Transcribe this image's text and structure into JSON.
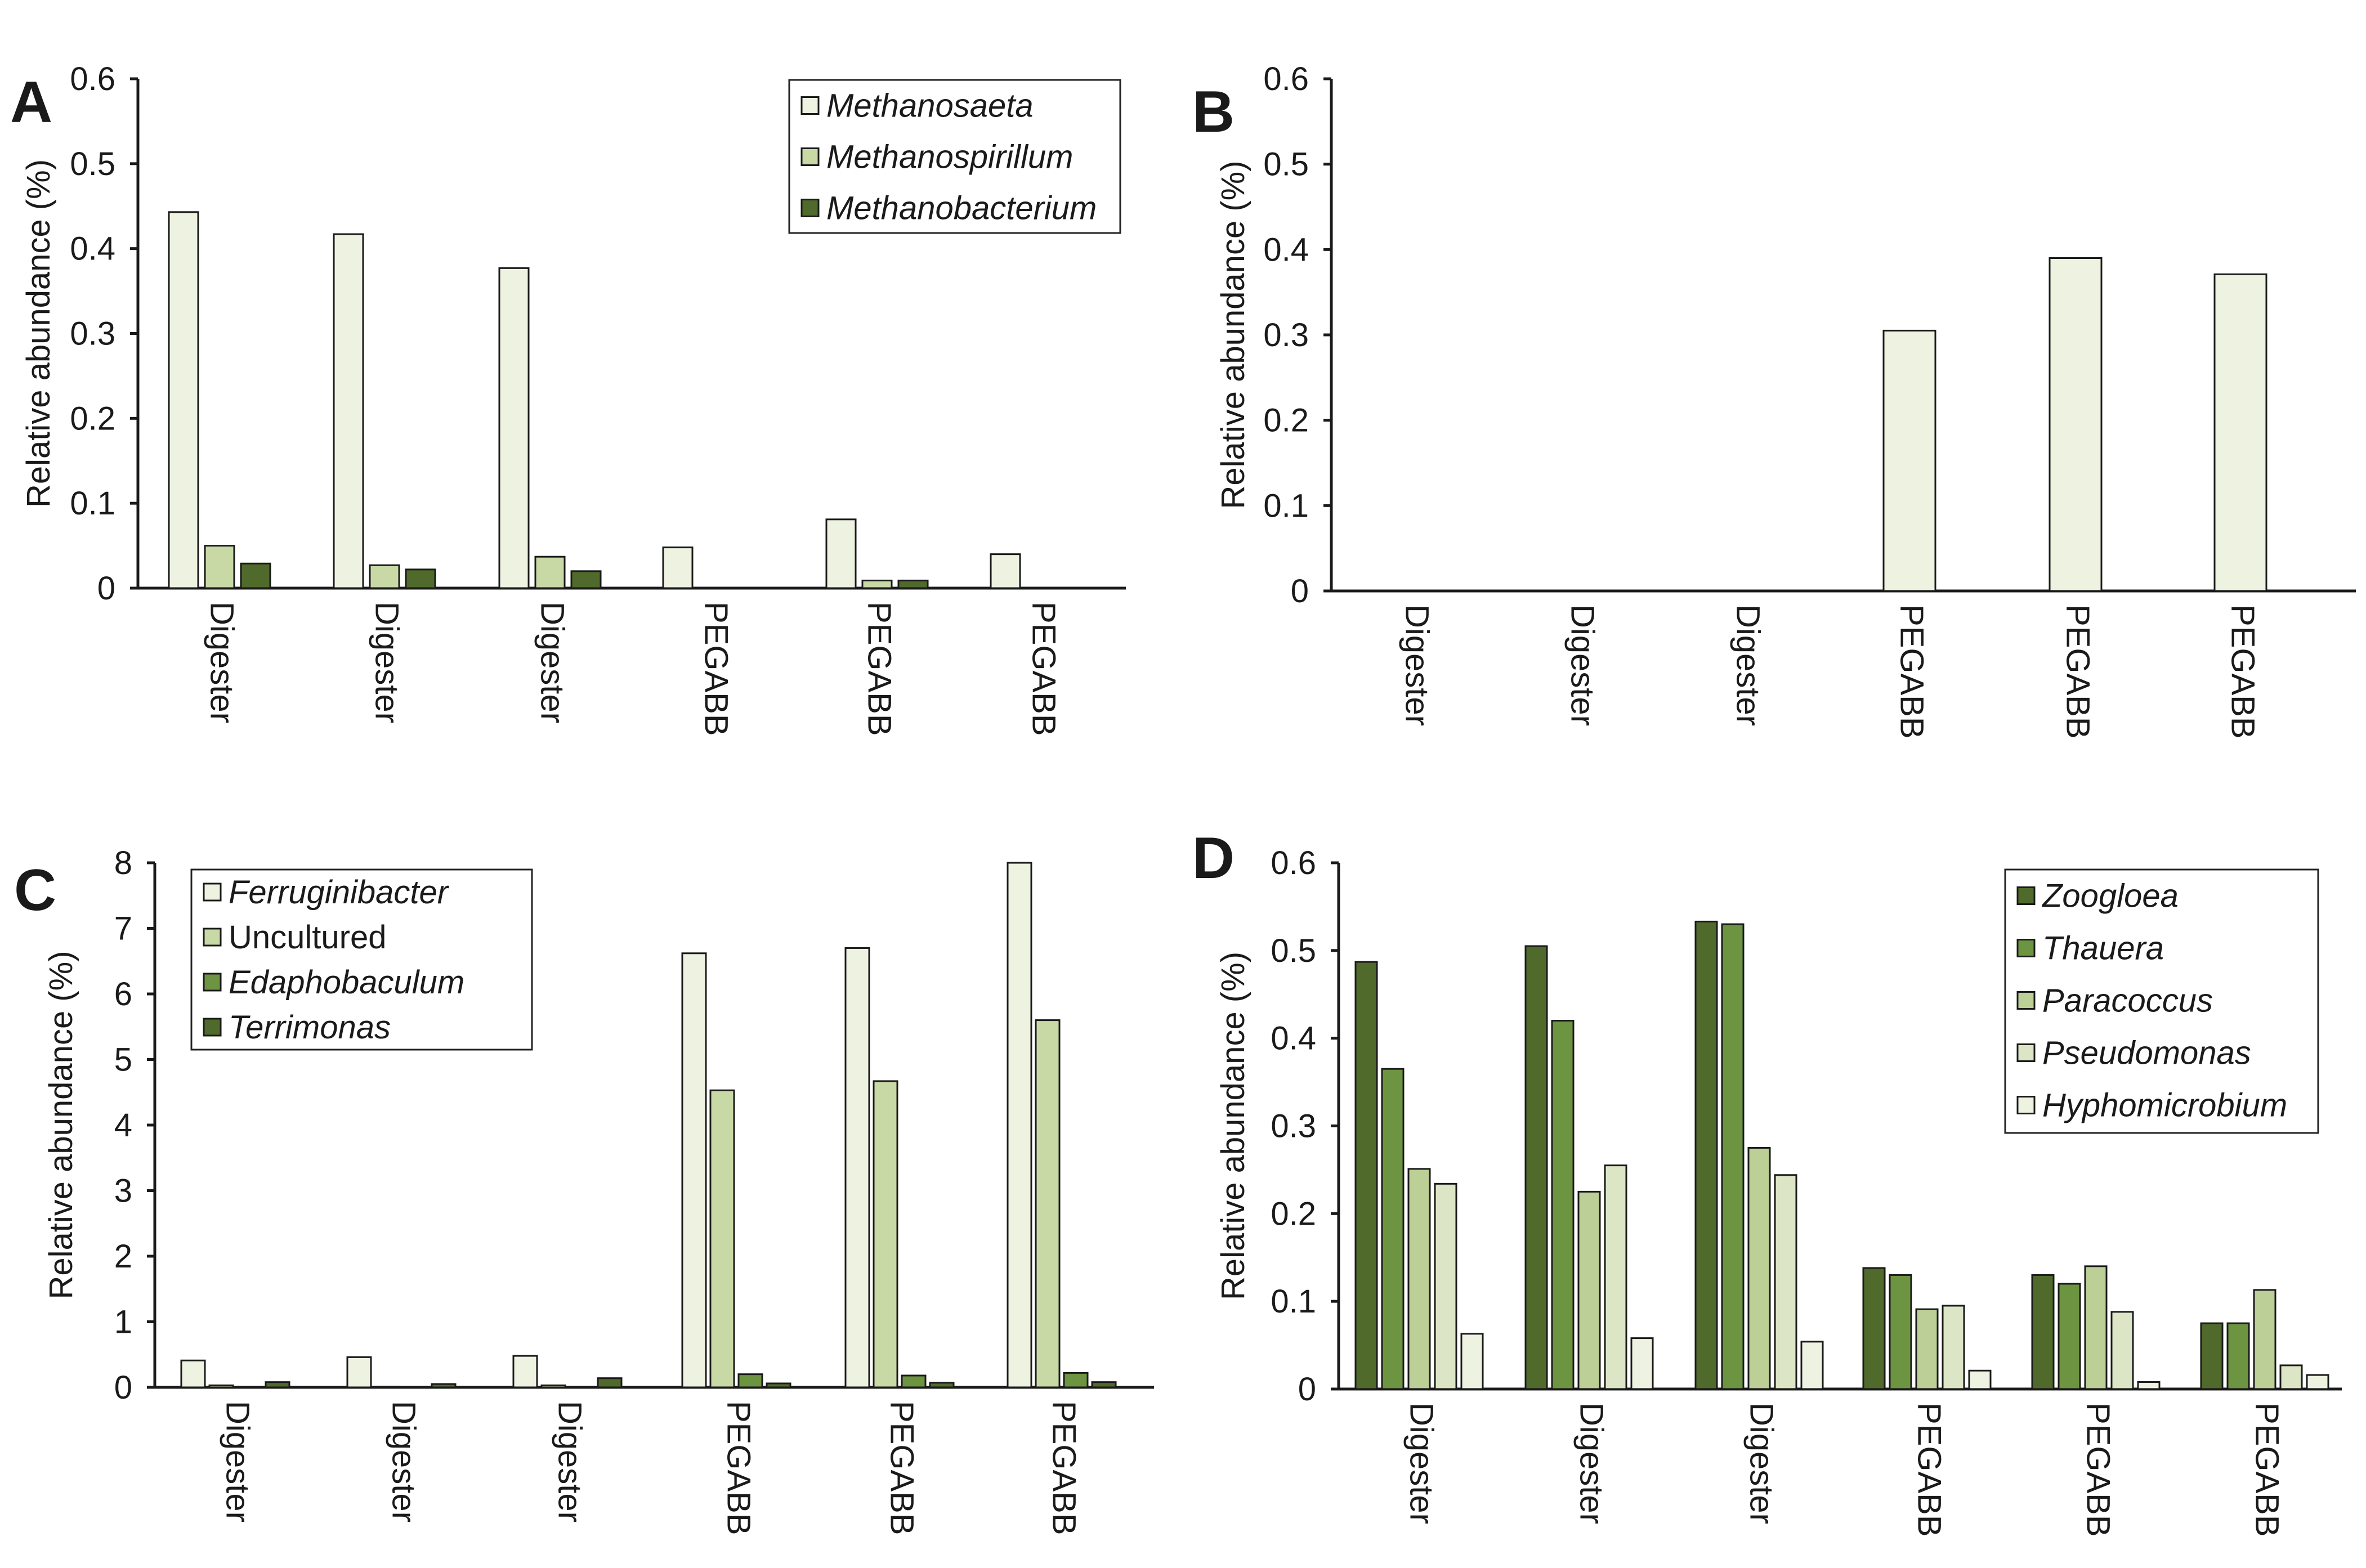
{
  "colors": {
    "lightest": "#eef2e1",
    "light": "#c8d9a6",
    "medium": "#6d9440",
    "dark": "#4f6a2a",
    "pale": "#dce6c6",
    "lightmid": "#bccf96"
  },
  "chart_data": [
    {
      "panel": "A",
      "type": "bar",
      "ylabel": "Relative abundance (%)",
      "ylim": [
        0,
        0.6
      ],
      "yticks": [
        0,
        0.1,
        0.2,
        0.3,
        0.4,
        0.5,
        0.6
      ],
      "ytick_labels": [
        "0",
        "0.1",
        "0.2",
        "0.3",
        "0.4",
        "0.5",
        "0.6"
      ],
      "categories": [
        "Digester",
        "Digester",
        "Digester",
        "PEGABB",
        "PEGABB",
        "PEGABB"
      ],
      "legend_position": "top-right",
      "series": [
        {
          "name": "Methanosaeta",
          "italic": true,
          "color": "#eef2e1",
          "values": [
            0.443,
            0.417,
            0.377,
            0.048,
            0.081,
            0.04
          ]
        },
        {
          "name": "Methanospirillum",
          "italic": true,
          "color": "#c8d9a6",
          "values": [
            0.05,
            0.027,
            0.037,
            0,
            0.009,
            0
          ]
        },
        {
          "name": "Methanobacterium",
          "italic": true,
          "color": "#4f6a2a",
          "values": [
            0.029,
            0.022,
            0.02,
            0,
            0.009,
            0
          ]
        }
      ]
    },
    {
      "panel": "B",
      "type": "bar",
      "ylabel": "Relative abundance (%)",
      "ylim": [
        0,
        0.6
      ],
      "yticks": [
        0,
        0.1,
        0.2,
        0.3,
        0.4,
        0.5,
        0.6
      ],
      "ytick_labels": [
        "0",
        "0.1",
        "0.2",
        "0.3",
        "0.4",
        "0.5",
        "0.6"
      ],
      "categories": [
        "Digester",
        "Digester",
        "Digester",
        "PEGABB",
        "PEGABB",
        "PEGABB"
      ],
      "legend_position": "none",
      "series": [
        {
          "name": "",
          "italic": false,
          "color": "#eef2e1",
          "values": [
            0,
            0,
            0,
            0.305,
            0.39,
            0.371
          ]
        }
      ]
    },
    {
      "panel": "C",
      "type": "bar",
      "ylabel": "Relative abundance (%)",
      "ylim": [
        0,
        8
      ],
      "yticks": [
        0,
        1,
        2,
        3,
        4,
        5,
        6,
        7,
        8
      ],
      "ytick_labels": [
        "0",
        "1",
        "2",
        "3",
        "4",
        "5",
        "6",
        "7",
        "8"
      ],
      "categories": [
        "Digester",
        "Digester",
        "Digester",
        "PEGABB",
        "PEGABB",
        "PEGABB"
      ],
      "legend_position": "top-left",
      "series": [
        {
          "name": "Ferruginibacter",
          "italic": true,
          "color": "#eef2e1",
          "values": [
            0.41,
            0.46,
            0.48,
            6.62,
            6.7,
            8.0
          ]
        },
        {
          "name": "Uncultured",
          "italic": false,
          "color": "#c8d9a6",
          "values": [
            0.03,
            0.01,
            0.03,
            4.53,
            4.67,
            5.6
          ]
        },
        {
          "name": "Edaphobaculum",
          "italic": true,
          "color": "#6d9440",
          "values": [
            0,
            0,
            0,
            0.2,
            0.18,
            0.22
          ]
        },
        {
          "name": "Terrimonas",
          "italic": true,
          "color": "#4f6a2a",
          "values": [
            0.08,
            0.05,
            0.14,
            0.06,
            0.07,
            0.08
          ]
        }
      ]
    },
    {
      "panel": "D",
      "type": "bar",
      "ylabel": "Relative abundance (%)",
      "ylim": [
        0,
        0.6
      ],
      "yticks": [
        0,
        0.1,
        0.2,
        0.3,
        0.4,
        0.5,
        0.6
      ],
      "ytick_labels": [
        "0",
        "0.1",
        "0.2",
        "0.3",
        "0.4",
        "0.5",
        "0.6"
      ],
      "categories": [
        "Digester",
        "Digester",
        "Digester",
        "PEGABB",
        "PEGABB",
        "PEGABB"
      ],
      "legend_position": "top-right",
      "series": [
        {
          "name": "Zoogloea",
          "italic": true,
          "color": "#4f6a2a",
          "values": [
            0.487,
            0.505,
            0.533,
            0.138,
            0.13,
            0.075
          ]
        },
        {
          "name": "Thauera",
          "italic": true,
          "color": "#6d9440",
          "values": [
            0.365,
            0.42,
            0.53,
            0.13,
            0.12,
            0.075
          ]
        },
        {
          "name": "Paracoccus",
          "italic": true,
          "color": "#bccf96",
          "values": [
            0.251,
            0.225,
            0.275,
            0.091,
            0.14,
            0.113
          ]
        },
        {
          "name": "Pseudomonas",
          "italic": true,
          "color": "#dce6c6",
          "values": [
            0.234,
            0.255,
            0.244,
            0.095,
            0.088,
            0.027
          ]
        },
        {
          "name": "Hyphomicrobium",
          "italic": true,
          "color": "#eef2e1",
          "values": [
            0.063,
            0.058,
            0.054,
            0.021,
            0.008,
            0.016
          ]
        }
      ]
    }
  ]
}
